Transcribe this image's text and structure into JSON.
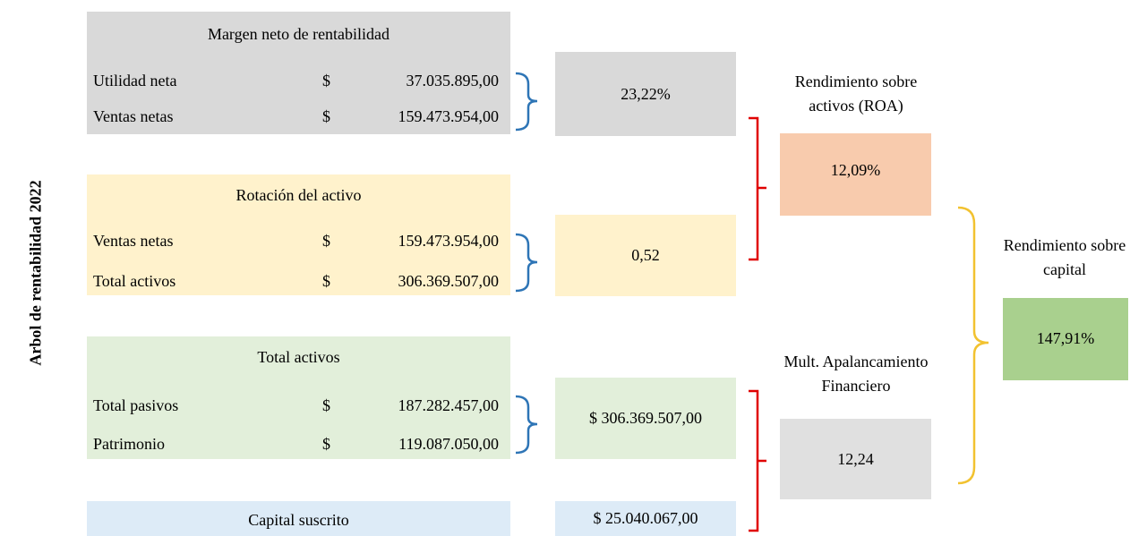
{
  "title": "Arbol de rentabilidad 2022",
  "blocks": [
    {
      "title": "Margen neto de rentabilidad",
      "rows": [
        {
          "label": "Utilidad neta",
          "currency": "$",
          "amount": "37.035.895,00"
        },
        {
          "label": "Ventas netas",
          "currency": "$",
          "amount": "159.473.954,00"
        }
      ],
      "result": "23,22%"
    },
    {
      "title": "Rotación del activo",
      "rows": [
        {
          "label": "Ventas netas",
          "currency": "$",
          "amount": "159.473.954,00"
        },
        {
          "label": "Total activos",
          "currency": "$",
          "amount": "306.369.507,00"
        }
      ],
      "result": "0,52"
    },
    {
      "title": "Total activos",
      "rows": [
        {
          "label": "Total pasivos",
          "currency": "$",
          "amount": "187.282.457,00"
        },
        {
          "label": "Patrimonio",
          "currency": "$",
          "amount": "119.087.050,00"
        }
      ],
      "result": "$ 306.369.507,00"
    },
    {
      "title": "Capital suscrito",
      "rows": [],
      "result": "$  25.040.067,00"
    }
  ],
  "roa": {
    "label": "Rendimiento sobre activos (ROA)",
    "value": "12,09%"
  },
  "leverage": {
    "label": "Mult. Apalancamiento Financiero",
    "value": "12,24"
  },
  "roe": {
    "label": "Rendimiento sobre capital",
    "value": "147,91%"
  }
}
